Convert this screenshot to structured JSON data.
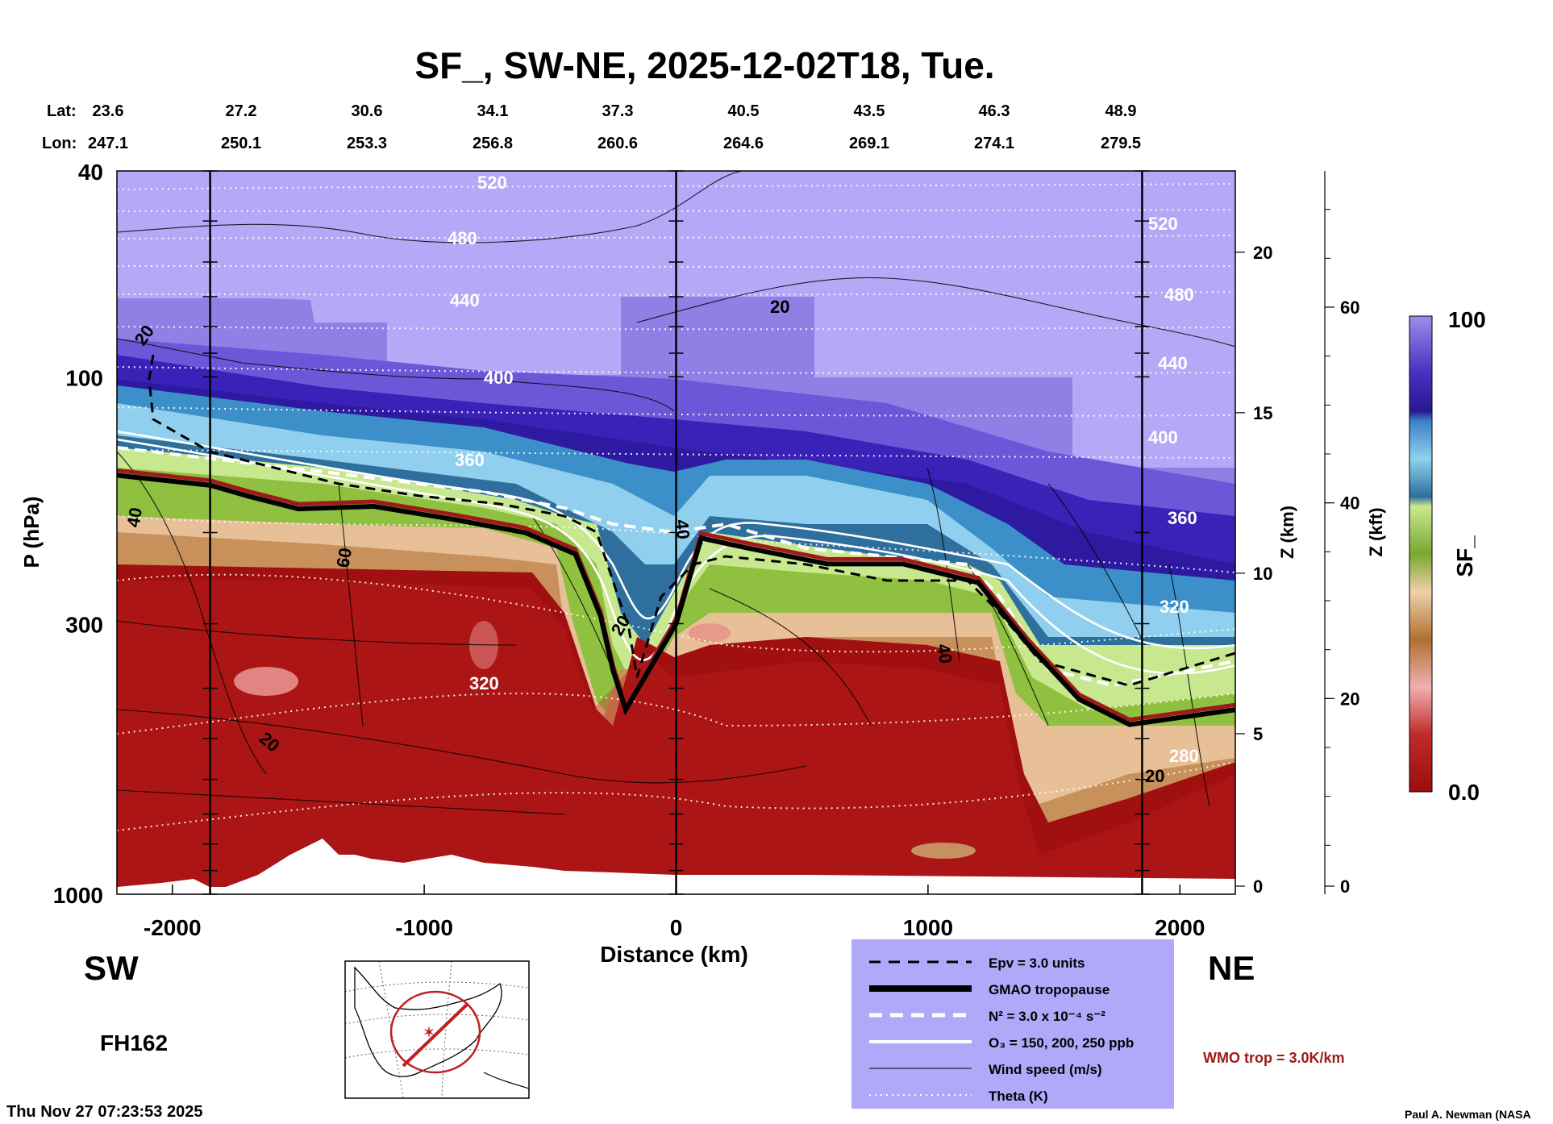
{
  "chart_data": {
    "type": "heatmap",
    "title": "SF_, SW-NE, 2025-12-02T18, Tue.",
    "lat_label": "Lat:",
    "lon_label": "Lon:",
    "lat_values": [
      "23.6",
      "27.2",
      "30.6",
      "34.1",
      "37.3",
      "40.5",
      "43.5",
      "46.3",
      "48.9"
    ],
    "lon_values": [
      "247.1",
      "250.1",
      "253.3",
      "256.8",
      "260.6",
      "264.6",
      "269.1",
      "274.1",
      "279.5"
    ],
    "xlabel": "Distance (km)",
    "ylabel": "P (hPa)",
    "zkm_label": "Z (km)",
    "zkft_label": "Z (kft)",
    "colorbar_label": "SF_",
    "x_ticks": [
      -2000,
      -1000,
      0,
      1000,
      2000
    ],
    "x_range": [
      -2220,
      2220
    ],
    "p_ticks": [
      40,
      100,
      300,
      1000
    ],
    "p_range": [
      1000,
      40
    ],
    "y_scale": "log",
    "zkm_ticks": [
      0,
      5,
      10,
      15,
      20
    ],
    "zkft_ticks": [
      0,
      20,
      40,
      60
    ],
    "colorbar_range": [
      0.0,
      100
    ],
    "colorbar_tick_labels": [
      "100",
      "0.0"
    ],
    "vertical_lines_km": [
      -1850,
      0,
      1850
    ],
    "left_label": "SW",
    "right_label": "NE",
    "forecast_hour": "FH162",
    "timestamp": "Thu Nov 27 07:23:53 2025",
    "credit": "Paul A. Newman (NASA",
    "wmo_note": "WMO trop = 3.0K/km",
    "legend": [
      {
        "style": "dash-black",
        "label": "Epv = 3.0 units"
      },
      {
        "style": "thick-black",
        "label": "GMAO tropopause"
      },
      {
        "style": "dash-white",
        "label": "N² = 3.0 x 10⁻⁴ s⁻²"
      },
      {
        "style": "solid-white",
        "label": "O₃ = 150, 200, 250 ppb"
      },
      {
        "style": "thin-black",
        "label": "Wind speed (m/s)"
      },
      {
        "style": "dot-white",
        "label": "Theta (K)"
      }
    ],
    "theta_labels": [
      "520",
      "480",
      "440",
      "400",
      "360",
      "320",
      "280",
      "520",
      "480",
      "440",
      "400",
      "360",
      "320"
    ],
    "wind_labels": [
      "20",
      "20",
      "40",
      "60",
      "40",
      "20",
      "40",
      "20",
      "20"
    ],
    "tropopause_profile": {
      "x": [
        -2220,
        -1850,
        -1700,
        -1500,
        -1200,
        -900,
        -600,
        -400,
        -300,
        -250,
        -200,
        0,
        100,
        300,
        600,
        900,
        1200,
        1400,
        1600,
        1800,
        2220
      ],
      "p": [
        155,
        162,
        170,
        180,
        178,
        188,
        200,
        220,
        290,
        370,
        440,
        300,
        205,
        215,
        230,
        230,
        250,
        330,
        420,
        470,
        440
      ]
    },
    "colors": {
      "high": "#3a1fb0",
      "purple": "#7a6be0",
      "lavender": "#b0a8f5",
      "blue": "#3c8fc8",
      "lightblue": "#8fd0ee",
      "green": "#8fc040",
      "lightgreen": "#c8e890",
      "tan": "#d2a070",
      "red": "#a01010",
      "wmo": "#a01a1a",
      "legend_bg": "#b0a8f8"
    }
  }
}
